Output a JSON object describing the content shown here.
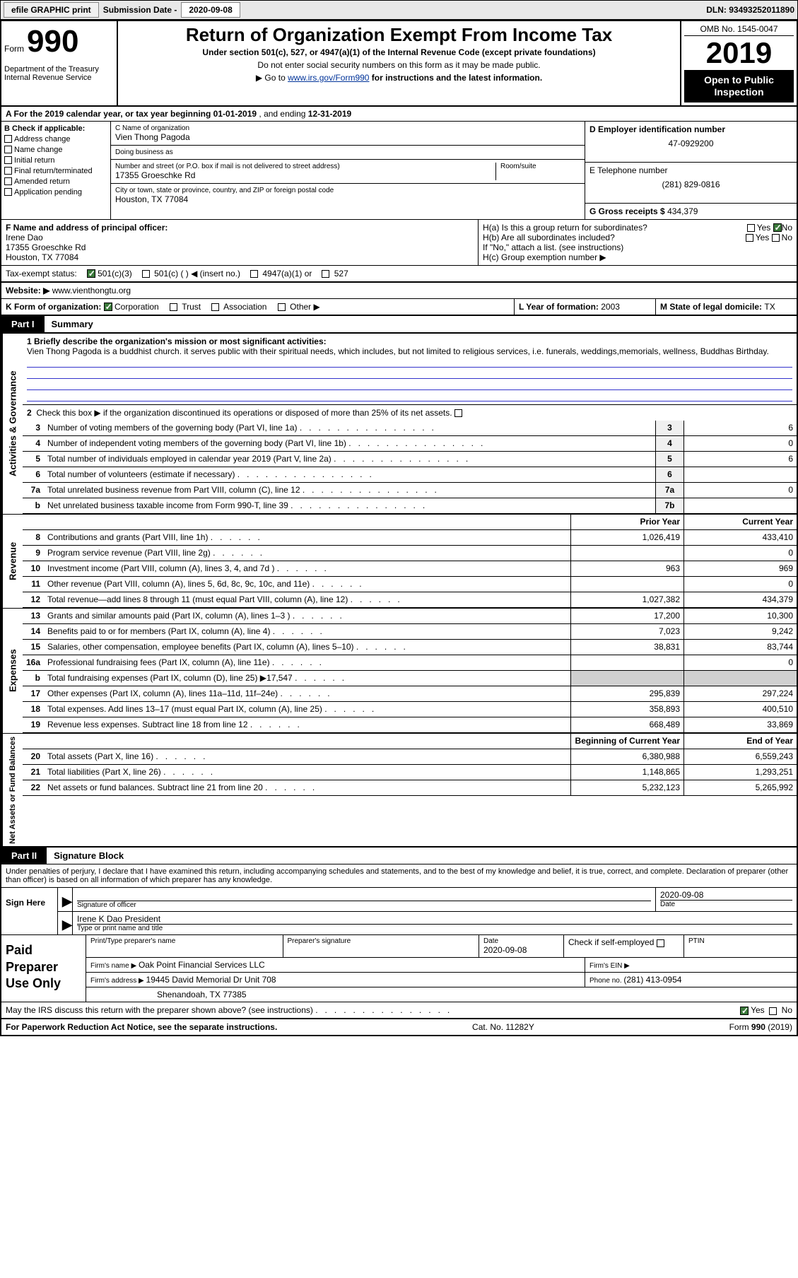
{
  "topbar": {
    "efile_btn": "efile GRAPHIC print",
    "sub_label": "Submission Date - ",
    "sub_date": "2020-09-08",
    "dln_label": "DLN: ",
    "dln": "93493252011890"
  },
  "header": {
    "form_word": "Form",
    "form_num": "990",
    "dept": "Department of the Treasury\nInternal Revenue Service",
    "title": "Return of Organization Exempt From Income Tax",
    "sub1": "Under section 501(c), 527, or 4947(a)(1) of the Internal Revenue Code (except private foundations)",
    "sub2": "Do not enter social security numbers on this form as it may be made public.",
    "sub3_pre": "Go to ",
    "sub3_link": "www.irs.gov/Form990",
    "sub3_post": " for instructions and the latest information.",
    "omb": "OMB No. 1545-0047",
    "year": "2019",
    "opento": "Open to Public Inspection"
  },
  "rowA": {
    "text_pre": "A For the 2019 calendar year, or tax year beginning ",
    "begin": "01-01-2019",
    "mid": "   , and ending ",
    "end": "12-31-2019"
  },
  "colB": {
    "head": "B Check if applicable:",
    "opts": [
      "Address change",
      "Name change",
      "Initial return",
      "Final return/terminated",
      "Amended return",
      "Application pending"
    ]
  },
  "colC": {
    "clabel": "C Name of organization",
    "name": "Vien Thong Pagoda",
    "dba_label": "Doing business as",
    "dba": "",
    "addr_label": "Number and street (or P.O. box if mail is not delivered to street address)",
    "room_label": "Room/suite",
    "street": "17355 Groeschke Rd",
    "city_label": "City or town, state or province, country, and ZIP or foreign postal code",
    "city": "Houston, TX  77084"
  },
  "colD": {
    "d_label": "D Employer identification number",
    "ein": "47-0929200",
    "e_label": "E Telephone number",
    "phone": "(281) 829-0816",
    "g_label": "G Gross receipts $ ",
    "gross": "434,379"
  },
  "rowF": {
    "f_label": "F Name and address of principal officer:",
    "name": "Irene Dao",
    "street": "17355 Groeschke Rd",
    "city": "Houston, TX  77084",
    "ha": "H(a)  Is this a group return for subordinates?",
    "hb": "H(b)  Are all subordinates included?",
    "hnote": "If \"No,\" attach a list. (see instructions)",
    "hc": "H(c)  Group exemption number ▶",
    "yes": "Yes",
    "no": "No"
  },
  "rowI": {
    "label": "Tax-exempt status:",
    "o1": "501(c)(3)",
    "o2": "501(c) (  ) ◀ (insert no.)",
    "o3": "4947(a)(1) or",
    "o4": "527"
  },
  "rowJ": {
    "label": "Website: ▶",
    "url": "www.vienthongtu.org"
  },
  "rowK": {
    "label": "K Form of organization:",
    "o1": "Corporation",
    "o2": "Trust",
    "o3": "Association",
    "o4": "Other ▶"
  },
  "rowLM": {
    "l_label": "L Year of formation: ",
    "l_val": "2003",
    "m_label": "M State of legal domicile: ",
    "m_val": "TX"
  },
  "part1": {
    "tag": "Part I",
    "title": "Summary",
    "line1_label": "1  Briefly describe the organization's mission or most significant activities:",
    "line1_text": "Vien Thong Pagoda is a buddhist church. it serves public with their spiritual needs, which includes, but not limited to religious services, i.e. funerals, weddings,memorials, wellness, Buddhas Birthday.",
    "line2": "Check this box ▶      if the organization discontinued its operations or disposed of more than 25% of its net assets.",
    "sect_gov": "Activities & Governance",
    "sect_rev": "Revenue",
    "sect_exp": "Expenses",
    "sect_net": "Net Assets or Fund Balances",
    "prior": "Prior Year",
    "current": "Current Year",
    "begin": "Beginning of Current Year",
    "endyr": "End of Year",
    "rows_gov": [
      {
        "n": "3",
        "t": "Number of voting members of the governing body (Part VI, line 1a)",
        "box": "3",
        "v": "6"
      },
      {
        "n": "4",
        "t": "Number of independent voting members of the governing body (Part VI, line 1b)",
        "box": "4",
        "v": "0"
      },
      {
        "n": "5",
        "t": "Total number of individuals employed in calendar year 2019 (Part V, line 2a)",
        "box": "5",
        "v": "6"
      },
      {
        "n": "6",
        "t": "Total number of volunteers (estimate if necessary)",
        "box": "6",
        "v": ""
      },
      {
        "n": "7a",
        "t": "Total unrelated business revenue from Part VIII, column (C), line 12",
        "box": "7a",
        "v": "0"
      },
      {
        "n": "b",
        "t": "Net unrelated business taxable income from Form 990-T, line 39",
        "box": "7b",
        "v": ""
      }
    ],
    "rows_rev": [
      {
        "n": "8",
        "t": "Contributions and grants (Part VIII, line 1h)",
        "p": "1,026,419",
        "c": "433,410"
      },
      {
        "n": "9",
        "t": "Program service revenue (Part VIII, line 2g)",
        "p": "",
        "c": "0"
      },
      {
        "n": "10",
        "t": "Investment income (Part VIII, column (A), lines 3, 4, and 7d )",
        "p": "963",
        "c": "969"
      },
      {
        "n": "11",
        "t": "Other revenue (Part VIII, column (A), lines 5, 6d, 8c, 9c, 10c, and 11e)",
        "p": "",
        "c": "0"
      },
      {
        "n": "12",
        "t": "Total revenue—add lines 8 through 11 (must equal Part VIII, column (A), line 12)",
        "p": "1,027,382",
        "c": "434,379"
      }
    ],
    "rows_exp": [
      {
        "n": "13",
        "t": "Grants and similar amounts paid (Part IX, column (A), lines 1–3 )",
        "p": "17,200",
        "c": "10,300"
      },
      {
        "n": "14",
        "t": "Benefits paid to or for members (Part IX, column (A), line 4)",
        "p": "7,023",
        "c": "9,242"
      },
      {
        "n": "15",
        "t": "Salaries, other compensation, employee benefits (Part IX, column (A), lines 5–10)",
        "p": "38,831",
        "c": "83,744"
      },
      {
        "n": "16a",
        "t": "Professional fundraising fees (Part IX, column (A), line 11e)",
        "p": "",
        "c": "0"
      },
      {
        "n": "b",
        "t": "Total fundraising expenses (Part IX, column (D), line 25) ▶17,547",
        "p": "__shade__",
        "c": "__shade__"
      },
      {
        "n": "17",
        "t": "Other expenses (Part IX, column (A), lines 11a–11d, 11f–24e)",
        "p": "295,839",
        "c": "297,224"
      },
      {
        "n": "18",
        "t": "Total expenses. Add lines 13–17 (must equal Part IX, column (A), line 25)",
        "p": "358,893",
        "c": "400,510"
      },
      {
        "n": "19",
        "t": "Revenue less expenses. Subtract line 18 from line 12",
        "p": "668,489",
        "c": "33,869"
      }
    ],
    "rows_net": [
      {
        "n": "20",
        "t": "Total assets (Part X, line 16)",
        "p": "6,380,988",
        "c": "6,559,243"
      },
      {
        "n": "21",
        "t": "Total liabilities (Part X, line 26)",
        "p": "1,148,865",
        "c": "1,293,251"
      },
      {
        "n": "22",
        "t": "Net assets or fund balances. Subtract line 21 from line 20",
        "p": "5,232,123",
        "c": "5,265,992"
      }
    ]
  },
  "part2": {
    "tag": "Part II",
    "title": "Signature Block",
    "decl": "Under penalties of perjury, I declare that I have examined this return, including accompanying schedules and statements, and to the best of my knowledge and belief, it is true, correct, and complete. Declaration of preparer (other than officer) is based on all information of which preparer has any knowledge.",
    "sign_here": "Sign Here",
    "sig_officer": "Signature of officer",
    "sig_date": "2020-09-08",
    "date_lbl": "Date",
    "typed": "Irene K Dao  President",
    "typed_lbl": "Type or print name and title",
    "paid": "Paid Preparer Use Only",
    "pp_name_lbl": "Print/Type preparer's name",
    "pp_sig_lbl": "Preparer's signature",
    "pp_date_lbl": "Date",
    "pp_date": "2020-09-08",
    "pp_check": "Check        if self-employed",
    "ptin_lbl": "PTIN",
    "firm_name_lbl": "Firm's name    ▶ ",
    "firm_name": "Oak Point Financial Services LLC",
    "firm_ein_lbl": "Firm's EIN ▶",
    "firm_addr_lbl": "Firm's address ▶ ",
    "firm_addr1": "19445 David Memorial Dr Unit 708",
    "firm_addr2": "Shenandoah, TX  77385",
    "firm_phone_lbl": "Phone no. ",
    "firm_phone": "(281) 413-0954",
    "discuss": "May the IRS discuss this return with the preparer shown above? (see instructions)"
  },
  "footer": {
    "left": "For Paperwork Reduction Act Notice, see the separate instructions.",
    "mid": "Cat. No. 11282Y",
    "right": "Form 990 (2019)"
  }
}
